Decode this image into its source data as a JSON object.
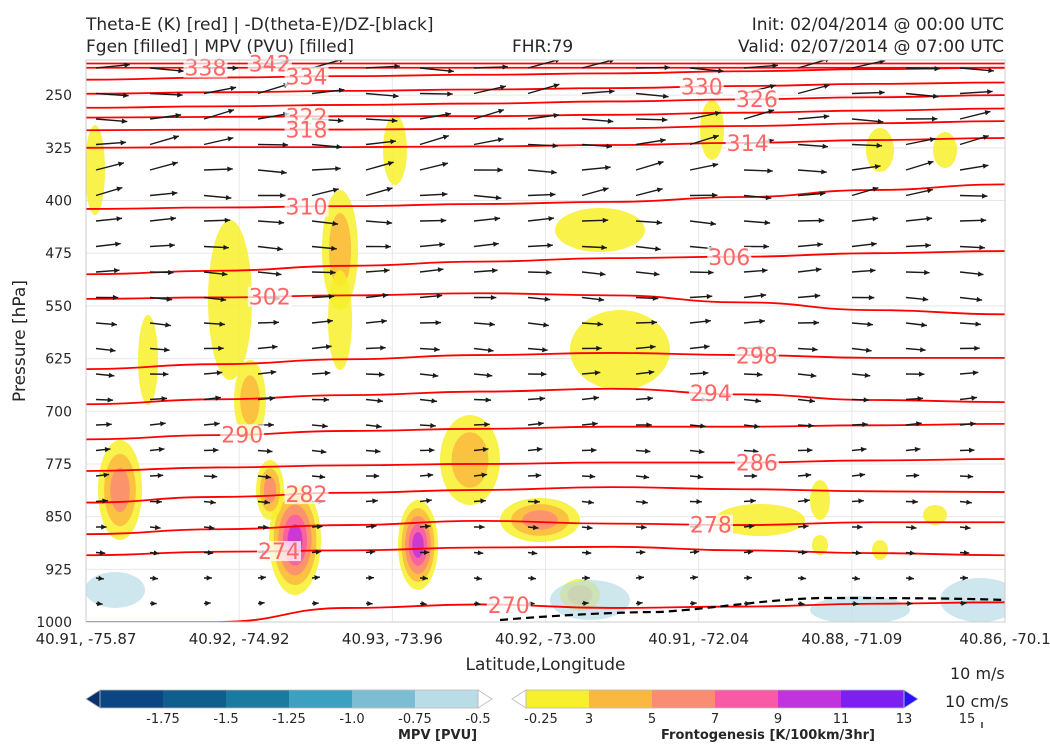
{
  "titles": {
    "top_left_line1": "Theta-E (K) [red] | -D(theta-E)/DZ-[black]",
    "top_left_line2": "Fgen [filled] | MPV (PVU) [filled]",
    "center": "FHR:79",
    "top_right_line1": "Init: 02/04/2014 @ 00:00 UTC",
    "top_right_line2": "Valid: 02/07/2014 @ 07:00 UTC"
  },
  "colors": {
    "theta_e": "#ff0000",
    "theta_e_label": "#ff6666",
    "wind_arrows": "#1a1a1a",
    "stability": "#000000"
  },
  "chart_data": {
    "type": "cross-section",
    "xlabel": "Latitude,Longitude",
    "ylabel": "Pressure [hPa]",
    "x_tick_labels": [
      "40.91, -75.87",
      "40.92, -74.92",
      "40.93, -73.96",
      "40.92, -73.00",
      "40.91, -72.04",
      "40.88, -71.09",
      "40.86, -70.1"
    ],
    "y_ticks": [
      250,
      325,
      400,
      475,
      550,
      625,
      700,
      775,
      850,
      925,
      1000
    ],
    "ylim": [
      1000,
      200
    ],
    "grid": true,
    "theta_e_contours": [
      {
        "value": 342,
        "label_x": 0.2,
        "levels": [
          205,
          205,
          205,
          205,
          205,
          205,
          205,
          205
        ]
      },
      {
        "value": 338,
        "label_x": 0.13,
        "levels": [
          211,
          211,
          211,
          211,
          211,
          211,
          211,
          211
        ]
      },
      {
        "value": 334,
        "label_x": 0.24,
        "levels": [
          228,
          225,
          223,
          221,
          219,
          216,
          213,
          211
        ]
      },
      {
        "value": 330,
        "label_x": 0.67,
        "levels": [
          248,
          246,
          244,
          242,
          240,
          237,
          234,
          232
        ]
      },
      {
        "value": 326,
        "label_x": 0.73,
        "levels": [
          268,
          266,
          264,
          262,
          259,
          256,
          253,
          250
        ]
      },
      {
        "value": 322,
        "label_x": 0.24,
        "levels": [
          282,
          281,
          280,
          280,
          278,
          275,
          272,
          269
        ]
      },
      {
        "value": 318,
        "label_x": 0.24,
        "levels": [
          300,
          299,
          299,
          298,
          297,
          294,
          290,
          287
        ]
      },
      {
        "value": 314,
        "label_x": 0.72,
        "levels": [
          325,
          324,
          324,
          323,
          321,
          318,
          314,
          311
        ]
      },
      {
        "value": 310,
        "label_x": 0.24,
        "levels": [
          412,
          410,
          408,
          405,
          402,
          395,
          385,
          377
        ]
      },
      {
        "value": 306,
        "label_x": 0.7,
        "levels": [
          505,
          500,
          493,
          487,
          482,
          480,
          475,
          472
        ]
      },
      {
        "value": 302,
        "label_x": 0.2,
        "levels": [
          540,
          538,
          535,
          532,
          535,
          545,
          556,
          562
        ]
      },
      {
        "value": 298,
        "label_x": 0.73,
        "levels": [
          640,
          633,
          626,
          620,
          617,
          620,
          624,
          624
        ]
      },
      {
        "value": 294,
        "label_x": 0.68,
        "levels": [
          690,
          683,
          677,
          672,
          668,
          676,
          684,
          687
        ]
      },
      {
        "value": 290,
        "label_x": 0.17,
        "levels": [
          740,
          734,
          728,
          725,
          722,
          722,
          720,
          718
        ]
      },
      {
        "value": 286,
        "label_x": 0.73,
        "levels": [
          785,
          780,
          777,
          775,
          773,
          773,
          770,
          768
        ]
      },
      {
        "value": 282,
        "label_x": 0.24,
        "levels": [
          830,
          822,
          816,
          812,
          808,
          811,
          814,
          815
        ]
      },
      {
        "value": 278,
        "label_x": 0.68,
        "levels": [
          875,
          868,
          862,
          856,
          860,
          862,
          858,
          858
        ]
      },
      {
        "value": 274,
        "label_x": 0.21,
        "levels": [
          905,
          900,
          898,
          894,
          893,
          898,
          902,
          905
        ]
      },
      {
        "value": 270,
        "label_x": 0.46,
        "levels": [
          1000,
          1000,
          980,
          975,
          980,
          978,
          974,
          972
        ]
      }
    ],
    "mpv_colorbar": {
      "label": "MPV [PVU]",
      "tick_labels": [
        "-1.75",
        "-1.5",
        "-1.25",
        "-1.0",
        "-0.75",
        "-0.5",
        "-0.25"
      ],
      "colors": [
        "#08306b",
        "#0b4582",
        "#0f5e8e",
        "#1a7aa0",
        "#3ca0c0",
        "#7cbdd4",
        "#b9dce6",
        "#ffffff"
      ]
    },
    "fgen_colorbar": {
      "label": "Frontogenesis [K/100km/3hr]",
      "tick_labels": [
        "3",
        "5",
        "7",
        "9",
        "11",
        "13",
        "15"
      ],
      "colors": [
        "#ffffff",
        "#f7f02a",
        "#fbb840",
        "#fa8c74",
        "#f95aa6",
        "#c133dc",
        "#7d1ff0",
        "#2a11f6"
      ]
    },
    "wind_scale": {
      "horizontal": "10 m/s",
      "vertical": "10 cm/s"
    }
  }
}
